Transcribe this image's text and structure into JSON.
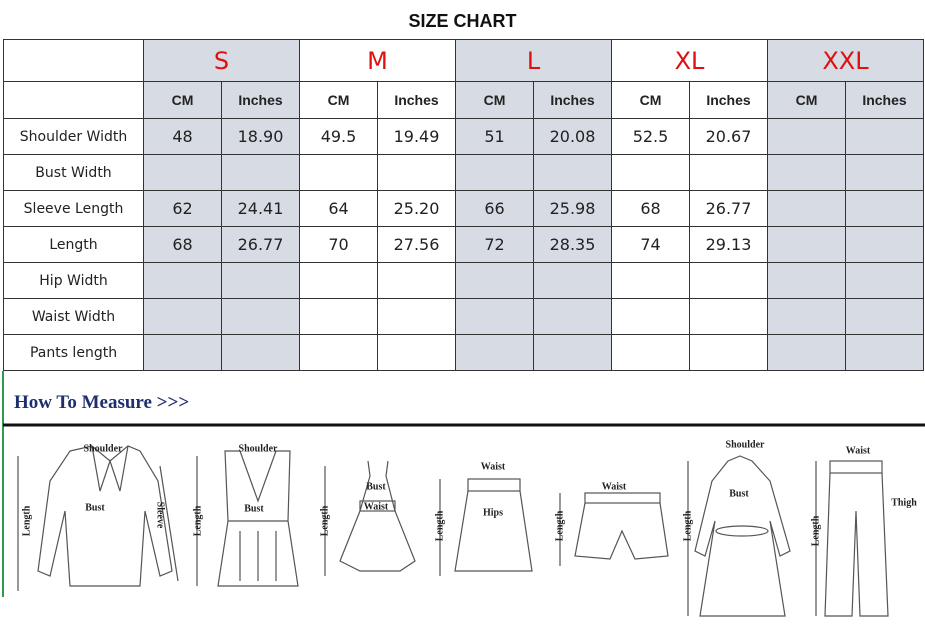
{
  "title": "SIZE CHART",
  "table": {
    "sizes": [
      "S",
      "M",
      "L",
      "XL",
      "XXL"
    ],
    "units": [
      "CM",
      "Inches"
    ],
    "rows": [
      {
        "label": "Shoulder Width",
        "cells": [
          "48",
          "18.90",
          "49.5",
          "19.49",
          "51",
          "20.08",
          "52.5",
          "20.67",
          null,
          null
        ]
      },
      {
        "label": "Bust Width",
        "cells": [
          null,
          null,
          null,
          null,
          null,
          null,
          null,
          null,
          null,
          null
        ]
      },
      {
        "label": "Sleeve Length",
        "cells": [
          "62",
          "24.41",
          "64",
          "25.20",
          "66",
          "25.98",
          "68",
          "26.77",
          null,
          null
        ]
      },
      {
        "label": "Length",
        "cells": [
          "68",
          "26.77",
          "70",
          "27.56",
          "72",
          "28.35",
          "74",
          "29.13",
          null,
          null
        ]
      },
      {
        "label": "Hip Width",
        "cells": [
          null,
          null,
          null,
          null,
          null,
          null,
          null,
          null,
          null,
          null
        ]
      },
      {
        "label": "Waist Width",
        "cells": [
          null,
          null,
          null,
          null,
          null,
          null,
          null,
          null,
          null,
          null
        ]
      },
      {
        "label": "Pants length",
        "cells": [
          null,
          null,
          null,
          null,
          null,
          null,
          null,
          null,
          null,
          null
        ]
      }
    ]
  },
  "measure": {
    "heading": "How To Measure >>>",
    "figures": [
      {
        "labels": [
          "Shoulder",
          "Bust",
          "Sleeve",
          "Length"
        ]
      },
      {
        "labels": [
          "Shoulder",
          "Bust",
          "Length"
        ]
      },
      {
        "labels": [
          "Bust",
          "Waist",
          "Length"
        ]
      },
      {
        "labels": [
          "Waist",
          "Hips",
          "Length"
        ]
      },
      {
        "labels": [
          "Waist",
          "Length"
        ]
      },
      {
        "labels": [
          "Shoulder",
          "Bust",
          "Length"
        ]
      },
      {
        "labels": [
          "Waist",
          "Thigh",
          "Length"
        ]
      }
    ]
  }
}
